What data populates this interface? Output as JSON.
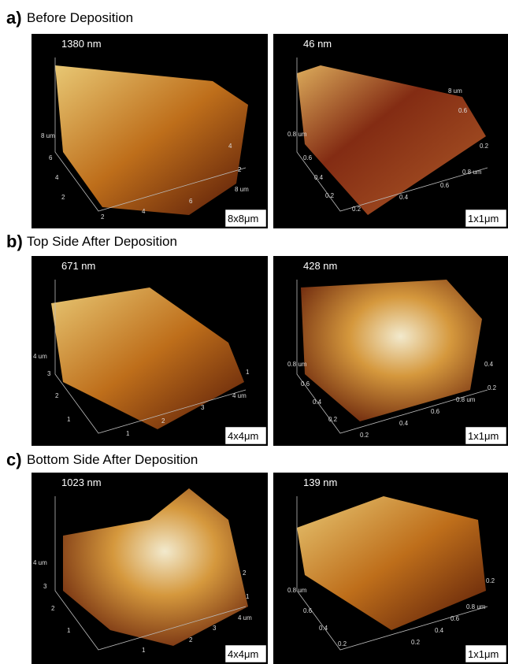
{
  "panels": [
    {
      "label": "a)",
      "title": "Before Deposition",
      "images": [
        {
          "height": "1380 nm",
          "scale": "8x8μm",
          "ticks": [
            "8 um",
            "6",
            "4",
            "2",
            "2",
            "4",
            "6",
            "8 um",
            "4",
            "2"
          ]
        },
        {
          "height": "46 nm",
          "scale": "1x1μm",
          "ticks": [
            "8 um",
            "0.6",
            "0.2",
            "0.8 um",
            "0.6",
            "0.4",
            "0.2",
            "0.2",
            "0.4",
            "0.6",
            "0.8 um"
          ]
        }
      ]
    },
    {
      "label": "b)",
      "title": "Top Side After Deposition",
      "images": [
        {
          "height": "671 nm",
          "scale": "4x4μm",
          "ticks": [
            "4 um",
            "3",
            "2",
            "1",
            "1",
            "2",
            "3",
            "4 um",
            "1"
          ]
        },
        {
          "height": "428 nm",
          "scale": "1x1μm",
          "ticks": [
            "0.8 um",
            "0.6",
            "0.4",
            "0.2",
            "0.2",
            "0.4",
            "0.6",
            "0.8 um",
            "0.4",
            "0.2"
          ]
        }
      ]
    },
    {
      "label": "c)",
      "title": "Bottom Side After Deposition",
      "images": [
        {
          "height": "1023 nm",
          "scale": "4x4μm",
          "ticks": [
            "4 um",
            "3",
            "2",
            "1",
            "1",
            "2",
            "3",
            "4 um",
            "1",
            "2"
          ]
        },
        {
          "height": "139 nm",
          "scale": "1x1μm",
          "ticks": [
            "0.8 um",
            "0.6",
            "0.4",
            "0.2",
            "0.2",
            "0.4",
            "0.6",
            "0.8 um",
            "0.2"
          ]
        }
      ]
    }
  ]
}
